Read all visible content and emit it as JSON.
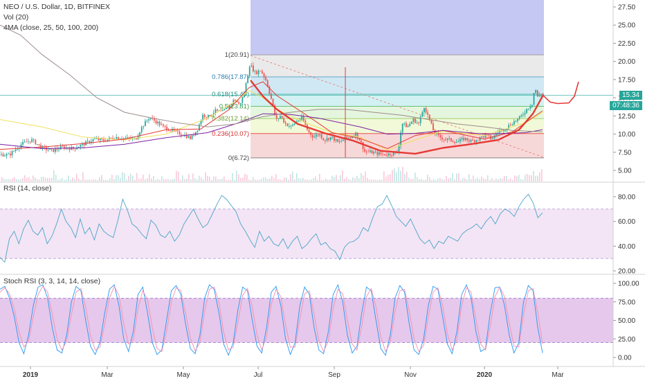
{
  "legend": {
    "title": "NEO / U.S. Dollar, 1D, BITFINEX",
    "vol": "Vol (20)",
    "ma": "4MA (close, 25, 50, 100, 200)",
    "rsi": "RSI (14, close)",
    "stoch": "Stoch RSI (3, 3, 14, 14, close)"
  },
  "price_badge": "15.34",
  "countdown_badge": "07:48:36",
  "colors": {
    "accent_red": "#e53935",
    "rsi_line": "#4aa3c7",
    "stoch_k": "#2196f3",
    "stoch_d": "#f48fb1",
    "rsi_band": "#f3e5f5",
    "stoch_band": "#e1bee7",
    "badge_price": "#26a69a",
    "badge_time": "#26a69a"
  },
  "chart_data": [
    {
      "type": "candlestick",
      "title": "NEO / U.S. Dollar, 1D, BITFINEX",
      "y_ticks": [
        "27.50",
        "25.00",
        "22.50",
        "20.00",
        "17.50",
        "15.00",
        "12.50",
        "10.00",
        "7.50",
        "5.00"
      ],
      "ylim": [
        3.9,
        28.3
      ],
      "x_ticks": [
        "2019",
        "Mar",
        "May",
        "Jul",
        "Sep",
        "Nov",
        "2020",
        "Mar"
      ],
      "price_path": [
        [
          0,
          7.2
        ],
        [
          12,
          7.1
        ],
        [
          30,
          8.6
        ],
        [
          45,
          9.2
        ],
        [
          60,
          8.1
        ],
        [
          75,
          7.7
        ],
        [
          90,
          8.2
        ],
        [
          105,
          8.0
        ],
        [
          120,
          8.6
        ],
        [
          135,
          9.3
        ],
        [
          150,
          9.1
        ],
        [
          165,
          9.6
        ],
        [
          180,
          9.4
        ],
        [
          195,
          9.3
        ],
        [
          205,
          11.1
        ],
        [
          215,
          12.3
        ],
        [
          225,
          11.7
        ],
        [
          235,
          11.0
        ],
        [
          245,
          10.6
        ],
        [
          255,
          10.2
        ],
        [
          265,
          9.9
        ],
        [
          275,
          9.4
        ],
        [
          285,
          10.8
        ],
        [
          292,
          12.6
        ],
        [
          300,
          12.4
        ],
        [
          310,
          13.2
        ],
        [
          320,
          13.0
        ],
        [
          330,
          13.8
        ],
        [
          338,
          14.8
        ],
        [
          345,
          14.0
        ],
        [
          352,
          15.6
        ],
        [
          360,
          19.6
        ],
        [
          368,
          18.4
        ],
        [
          376,
          18.8
        ],
        [
          384,
          17.3
        ],
        [
          392,
          14.5
        ],
        [
          398,
          11.9
        ],
        [
          404,
          12.5
        ],
        [
          412,
          11.4
        ],
        [
          420,
          11.0
        ],
        [
          428,
          11.8
        ],
        [
          436,
          12.2
        ],
        [
          444,
          10.4
        ],
        [
          452,
          9.6
        ],
        [
          460,
          10.0
        ],
        [
          468,
          9.2
        ],
        [
          478,
          9.6
        ],
        [
          488,
          8.8
        ],
        [
          498,
          9.4
        ],
        [
          506,
          9.6
        ],
        [
          513,
          10.1
        ],
        [
          520,
          9.0
        ],
        [
          526,
          7.6
        ],
        [
          536,
          7.5
        ],
        [
          546,
          7.3
        ],
        [
          556,
          7.2
        ],
        [
          566,
          7.3
        ],
        [
          574,
          7.5
        ],
        [
          580,
          11.5
        ],
        [
          588,
          11.0
        ],
        [
          596,
          12.0
        ],
        [
          604,
          11.4
        ],
        [
          612,
          13.8
        ],
        [
          618,
          12.4
        ],
        [
          626,
          10.3
        ],
        [
          634,
          9.6
        ],
        [
          642,
          9.3
        ],
        [
          650,
          9.2
        ],
        [
          660,
          8.9
        ],
        [
          670,
          9.4
        ],
        [
          680,
          9.0
        ],
        [
          690,
          9.3
        ],
        [
          700,
          9.8
        ],
        [
          710,
          9.4
        ],
        [
          720,
          10.4
        ],
        [
          730,
          10.8
        ],
        [
          740,
          11.6
        ],
        [
          750,
          12.2
        ],
        [
          760,
          13.4
        ],
        [
          768,
          14.2
        ],
        [
          772,
          16.5
        ],
        [
          776,
          15.0
        ],
        [
          780,
          15.6
        ],
        [
          784,
          15.3
        ]
      ],
      "ma_lines": [
        {
          "color": "#f0e05a",
          "points": [
            [
              0,
              12.0
            ],
            [
              60,
              11.0
            ],
            [
              120,
              9.6
            ],
            [
              180,
              9.2
            ],
            [
              240,
              10.0
            ],
            [
              300,
              12.2
            ],
            [
              340,
              14.5
            ],
            [
              360,
              16.0
            ],
            [
              380,
              15.0
            ],
            [
              400,
              13.4
            ],
            [
              440,
              11.6
            ],
            [
              480,
              10.2
            ],
            [
              520,
              9.6
            ],
            [
              560,
              7.8
            ],
            [
              600,
              9.2
            ],
            [
              640,
              10.4
            ],
            [
              700,
              9.8
            ],
            [
              760,
              11.6
            ],
            [
              784,
              13.0
            ]
          ]
        },
        {
          "color": "#e53935",
          "points": [
            [
              0,
              7.9
            ],
            [
              60,
              8.2
            ],
            [
              120,
              8.7
            ],
            [
              180,
              9.3
            ],
            [
              240,
              10.6
            ],
            [
              290,
              10.7
            ],
            [
              330,
              13.3
            ],
            [
              360,
              16.4
            ],
            [
              380,
              17.2
            ],
            [
              400,
              15.3
            ],
            [
              440,
              12.8
            ],
            [
              480,
              10.2
            ],
            [
              520,
              9.4
            ],
            [
              560,
              8.0
            ],
            [
              600,
              9.8
            ],
            [
              640,
              10.5
            ],
            [
              700,
              9.3
            ],
            [
              740,
              10.3
            ],
            [
              784,
              13.2
            ]
          ]
        },
        {
          "color": "#7b1fa2",
          "points": [
            [
              0,
              8.6
            ],
            [
              60,
              8.0
            ],
            [
              120,
              8.1
            ],
            [
              180,
              8.6
            ],
            [
              240,
              9.5
            ],
            [
              300,
              10.2
            ],
            [
              340,
              11.4
            ],
            [
              380,
              12.8
            ],
            [
              420,
              12.7
            ],
            [
              460,
              12.2
            ],
            [
              520,
              11.0
            ],
            [
              560,
              10.0
            ],
            [
              600,
              10.1
            ],
            [
              640,
              10.5
            ],
            [
              700,
              10.0
            ],
            [
              760,
              10.2
            ],
            [
              784,
              10.6
            ]
          ]
        },
        {
          "color": "#9e8c8c",
          "points": [
            [
              0,
              25.0
            ],
            [
              30,
              23.6
            ],
            [
              60,
              21.0
            ],
            [
              100,
              18.2
            ],
            [
              140,
              15.0
            ],
            [
              180,
              13.0
            ],
            [
              220,
              12.2
            ],
            [
              260,
              11.5
            ],
            [
              300,
              11.0
            ],
            [
              340,
              11.4
            ],
            [
              380,
              12.4
            ],
            [
              420,
              13.0
            ],
            [
              460,
              13.4
            ],
            [
              500,
              13.4
            ],
            [
              540,
              13.0
            ],
            [
              580,
              12.6
            ],
            [
              620,
              12.0
            ],
            [
              660,
              11.4
            ],
            [
              700,
              11.0
            ],
            [
              740,
              10.5
            ],
            [
              784,
              10.3
            ]
          ]
        }
      ],
      "cup_curve": [
        [
          362,
          17.4
        ],
        [
          380,
          15.2
        ],
        [
          400,
          13.4
        ],
        [
          430,
          11.4
        ],
        [
          470,
          10.1
        ],
        [
          510,
          9.1
        ],
        [
          550,
          7.7
        ],
        [
          600,
          7.3
        ],
        [
          640,
          8.1
        ],
        [
          680,
          8.6
        ],
        [
          720,
          9.2
        ],
        [
          750,
          10.6
        ],
        [
          770,
          12.8
        ],
        [
          785,
          15.4
        ]
      ],
      "projection_curve": [
        [
          784,
          15.4
        ],
        [
          795,
          14.4
        ],
        [
          806,
          14.2
        ],
        [
          822,
          14.3
        ],
        [
          830,
          15.2
        ],
        [
          836,
          17.2
        ]
      ],
      "fib": {
        "levels": [
          {
            "label": "1(20.91)",
            "value": 20.91
          },
          {
            "label": "0.786(17.87)",
            "value": 17.87
          },
          {
            "label": "0.618(15.49)",
            "value": 15.49
          },
          {
            "label": "0.5(13.81)",
            "value": 13.81
          },
          {
            "label": "0.382(12.14)",
            "value": 12.14
          },
          {
            "label": "0.236(10.07)",
            "value": 10.07
          },
          {
            "label": "0(6.72)",
            "value": 6.72
          }
        ],
        "x_range": [
          362,
          786
        ]
      },
      "blue_box": {
        "x_range": [
          362,
          786
        ],
        "y_range": [
          20.91,
          28.3
        ]
      },
      "diag_line": [
        [
          362,
          20.8
        ],
        [
          786,
          6.8
        ]
      ],
      "vertical_marker": {
        "x": 499,
        "y_range": [
          6.8,
          19.2
        ]
      },
      "horizontal_line": 15.34
    },
    {
      "type": "line",
      "title": "RSI (14, close)",
      "y_ticks": [
        "80.00",
        "60.00",
        "40.00",
        "20.00"
      ],
      "ylim": [
        16,
        88
      ],
      "band": [
        30,
        70
      ],
      "values": [
        31,
        27,
        46,
        52,
        42,
        54,
        61,
        52,
        49,
        55,
        42,
        48,
        58,
        70,
        60,
        55,
        47,
        62,
        50,
        55,
        45,
        58,
        52,
        49,
        47,
        61,
        78,
        69,
        58,
        55,
        50,
        46,
        61,
        57,
        49,
        47,
        52,
        44,
        49,
        58,
        64,
        70,
        62,
        55,
        58,
        66,
        74,
        81,
        78,
        73,
        68,
        58,
        52,
        45,
        39,
        52,
        44,
        48,
        42,
        40,
        46,
        38,
        44,
        48,
        38,
        41,
        46,
        50,
        41,
        43,
        38,
        36,
        29,
        39,
        43,
        44,
        47,
        55,
        52,
        63,
        72,
        74,
        81,
        73,
        64,
        60,
        56,
        62,
        54,
        46,
        42,
        45,
        38,
        44,
        42,
        48,
        46,
        44,
        50,
        53,
        55,
        58,
        54,
        60,
        64,
        58,
        66,
        70,
        68,
        64,
        72,
        78,
        82,
        75,
        63,
        67
      ]
    },
    {
      "type": "line",
      "title": "Stoch RSI (3, 3, 14, 14, close)",
      "y_ticks": [
        "100.00",
        "75.00",
        "50.00",
        "25.00",
        "0.00"
      ],
      "ylim": [
        -6,
        106
      ],
      "band": [
        20,
        80
      ],
      "series": [
        {
          "values": [
            92,
            96,
            80,
            55,
            20,
            5,
            30,
            70,
            95,
            98,
            80,
            40,
            10,
            6,
            30,
            75,
            96,
            90,
            50,
            15,
            4,
            20,
            60,
            92,
            98,
            70,
            25,
            8,
            35,
            85,
            95,
            60,
            20,
            4,
            10,
            50,
            90,
            97,
            85,
            45,
            12,
            5,
            30,
            80,
            98,
            92,
            60,
            18,
            3,
            20,
            65,
            95,
            90,
            50,
            15,
            6,
            40,
            88,
            96,
            70,
            25,
            4,
            20,
            70,
            95,
            85,
            40,
            10,
            5,
            35,
            85,
            98,
            75,
            30,
            6,
            15,
            60,
            95,
            90,
            50,
            12,
            3,
            30,
            80,
            97,
            88,
            45,
            10,
            4,
            25,
            70,
            96,
            92,
            55,
            18,
            5,
            35,
            85,
            98,
            80,
            35,
            8,
            12,
            60,
            94,
            95,
            70,
            30,
            6,
            20,
            75,
            97,
            90,
            40,
            6
          ]
        },
        {
          "values": [
            88,
            94,
            86,
            65,
            35,
            14,
            22,
            55,
            85,
            96,
            88,
            58,
            25,
            10,
            22,
            58,
            88,
            93,
            68,
            30,
            10,
            14,
            45,
            80,
            96,
            84,
            45,
            18,
            24,
            66,
            90,
            78,
            40,
            12,
            8,
            35,
            75,
            94,
            90,
            60,
            26,
            9,
            20,
            62,
            92,
            95,
            74,
            34,
            10,
            14,
            48,
            84,
            93,
            68,
            30,
            10,
            28,
            72,
            92,
            82,
            44,
            14,
            14,
            52,
            86,
            90,
            58,
            22,
            8,
            22,
            66,
            92,
            86,
            50,
            18,
            10,
            42,
            82,
            93,
            68,
            28,
            8,
            20,
            62,
            90,
            92,
            62,
            25,
            8,
            16,
            54,
            88,
            94,
            70,
            32,
            10,
            24,
            70,
            94,
            88,
            52,
            18,
            10,
            42,
            82,
            95,
            82,
            46,
            15,
            14,
            58,
            90,
            93,
            60,
            18
          ]
        }
      ]
    }
  ]
}
